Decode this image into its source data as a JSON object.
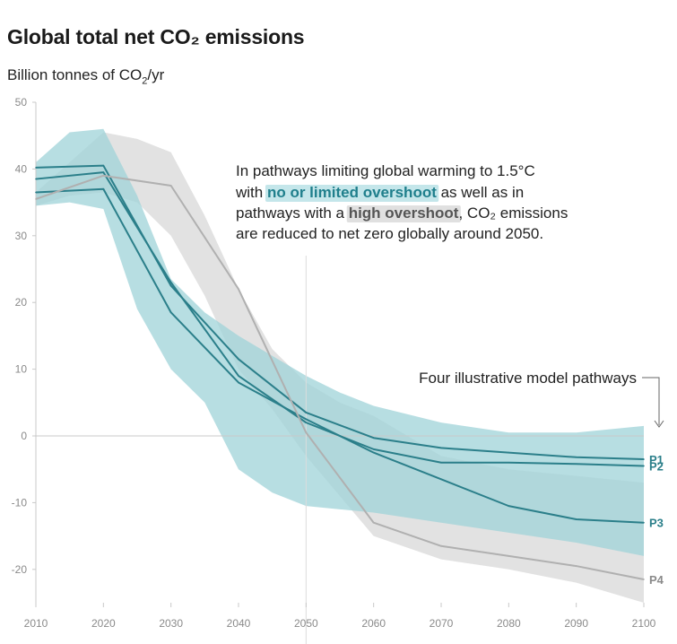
{
  "colors": {
    "blue_band": "#9fd3d8",
    "blue_line": "#2b7f8a",
    "grey_band": "#e2e2e2",
    "grey_line": "#b0b0b0",
    "axis": "#c8c8c8",
    "tick": "#8a8a8a",
    "highlight_blue_bg": "#c4e6ea",
    "highlight_grey_bg": "#e0e0e0"
  },
  "chart_data": {
    "type": "line",
    "title_text": "Global total net CO",
    "title_subscript": "₂",
    "title_suffix": " emissions",
    "ylabel_text": "Billion tonnes of CO",
    "ylabel_subscript": "2",
    "ylabel_suffix": "/yr",
    "xlim": [
      2010,
      2100
    ],
    "ylim": [
      -25,
      50
    ],
    "xticks": [
      2010,
      2020,
      2030,
      2040,
      2050,
      2060,
      2070,
      2080,
      2090,
      2100
    ],
    "yticks": [
      50,
      40,
      30,
      20,
      10,
      0,
      -10,
      -20
    ],
    "grid": false,
    "x": [
      2010,
      2020,
      2030,
      2040,
      2050,
      2060,
      2070,
      2080,
      2090,
      2100
    ],
    "series": [
      {
        "name": "P1",
        "group": "no or limited overshoot",
        "values": [
          40.2,
          40.5,
          22.5,
          11.5,
          3.5,
          -0.3,
          -1.8,
          -2.5,
          -3.2,
          -3.5
        ]
      },
      {
        "name": "P2",
        "group": "no or limited overshoot",
        "values": [
          38.5,
          39.5,
          23,
          9,
          2,
          -2,
          -4,
          -4,
          -4.2,
          -4.5
        ]
      },
      {
        "name": "P3",
        "group": "no or limited overshoot",
        "values": [
          36.5,
          37,
          18.5,
          8,
          2.5,
          -2.5,
          -6.5,
          -10.5,
          -12.5,
          -13
        ]
      },
      {
        "name": "P4",
        "group": "high overshoot",
        "values": [
          35.5,
          39,
          37.5,
          22,
          0.5,
          -13,
          -16.5,
          -18,
          -19.5,
          -21.5
        ]
      }
    ],
    "bands": [
      {
        "group": "high overshoot",
        "x": [
          2010,
          2015,
          2020,
          2025,
          2030,
          2035,
          2040,
          2045,
          2050,
          2055,
          2060,
          2070,
          2080,
          2090,
          2100
        ],
        "upper": [
          36.5,
          41,
          45.5,
          44.5,
          42.5,
          33,
          22,
          13,
          8,
          5,
          3,
          -3,
          -5,
          -6,
          -7
        ],
        "lower": [
          34.5,
          36,
          36.5,
          35,
          30,
          21,
          10,
          4,
          -3,
          -9,
          -15,
          -18.5,
          -20,
          -22,
          -25
        ]
      },
      {
        "group": "no or limited overshoot",
        "x": [
          2010,
          2015,
          2020,
          2025,
          2030,
          2035,
          2040,
          2045,
          2050,
          2055,
          2060,
          2070,
          2080,
          2090,
          2100
        ],
        "upper": [
          41,
          45.5,
          46,
          36,
          23.5,
          18.5,
          15,
          12,
          9,
          6.5,
          4.5,
          2,
          0.5,
          0.5,
          1.5
        ],
        "lower": [
          34.5,
          35,
          34,
          19,
          10,
          5,
          -5,
          -8.5,
          -10.5,
          -11,
          -11.5,
          -13,
          -14.5,
          -16,
          -18
        ]
      }
    ],
    "annotation": {
      "line1": "In pathways limiting global warming to 1.5°C",
      "line2_pre": "with ",
      "line2_highlight": "no or limited overshoot",
      "line2_post": " as well as in",
      "line3_pre": "pathways with a ",
      "line3_highlight": "high overshoot",
      "line3_post": ", CO₂ emissions",
      "line4": "are reduced to net zero globally around 2050."
    },
    "pathways_note": "Four illustrative model pathways"
  }
}
